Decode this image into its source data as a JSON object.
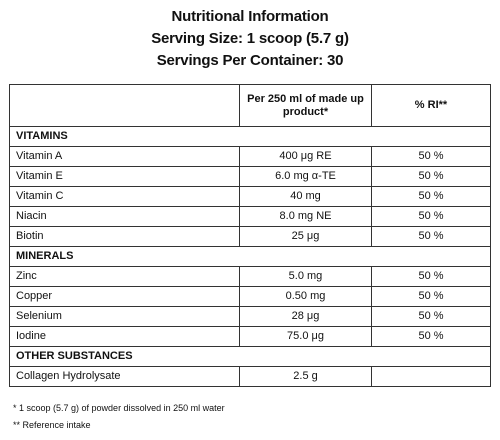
{
  "header": {
    "title": "Nutritional Information",
    "serving_size": "Serving Size: 1 scoop (5.7 g)",
    "servings_per_container": "Servings Per Container: 30"
  },
  "table": {
    "columns": [
      "",
      "Per 250 ml of made up product*",
      "% RI**"
    ],
    "sections": [
      {
        "name": "VITAMINS",
        "rows": [
          {
            "name": "Vitamin A",
            "amount": "400 μg RE",
            "ri": "50 %"
          },
          {
            "name": "Vitamin E",
            "amount": "6.0 mg α-TE",
            "ri": "50 %"
          },
          {
            "name": "Vitamin C",
            "amount": "40 mg",
            "ri": "50 %"
          },
          {
            "name": "Niacin",
            "amount": "8.0 mg NE",
            "ri": "50 %"
          },
          {
            "name": "Biotin",
            "amount": "25 μg",
            "ri": "50 %"
          }
        ]
      },
      {
        "name": "MINERALS",
        "rows": [
          {
            "name": "Zinc",
            "amount": "5.0 mg",
            "ri": "50 %"
          },
          {
            "name": "Copper",
            "amount": "0.50 mg",
            "ri": "50 %"
          },
          {
            "name": "Selenium",
            "amount": "28 μg",
            "ri": "50 %"
          },
          {
            "name": "Iodine",
            "amount": "75.0 μg",
            "ri": "50 %"
          }
        ]
      },
      {
        "name": "OTHER SUBSTANCES",
        "rows": [
          {
            "name": "Collagen Hydrolysate",
            "amount": "2.5 g",
            "ri": ""
          }
        ]
      }
    ]
  },
  "footnotes": [
    "* 1 scoop (5.7 g) of powder dissolved in 250 ml water",
    "** Reference intake"
  ]
}
